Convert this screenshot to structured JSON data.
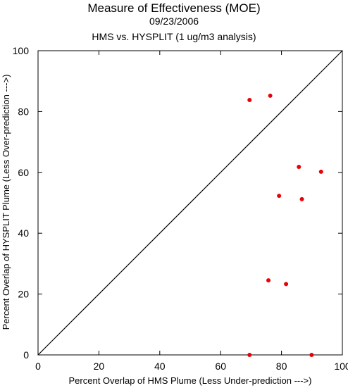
{
  "title": "Measure of Effectiveness (MOE)",
  "date": "09/23/2006",
  "subtitle": "HMS vs. HYSPLIT  (1 ug/m3 analysis)",
  "chart_data": {
    "type": "scatter",
    "title": "Measure of Effectiveness (MOE)",
    "subtitle": "HMS vs. HYSPLIT  (1 ug/m3 analysis)",
    "xlabel": "Percent Overlap of HMS Plume (Less Under-prediction --->)",
    "ylabel": "Percent Overlap of HYSPLIT Plume (Less Over-prediction --->)",
    "xlim": [
      0,
      100
    ],
    "ylim": [
      0,
      100
    ],
    "x_ticks": [
      0,
      20,
      40,
      60,
      80,
      100
    ],
    "y_ticks": [
      0,
      20,
      40,
      60,
      80,
      100
    ],
    "reference_line": "1:1 diagonal",
    "grid": false,
    "point_color": "#e8000b",
    "points": [
      {
        "x": 69.5,
        "y": 83.8
      },
      {
        "x": 76.3,
        "y": 85.2
      },
      {
        "x": 85.7,
        "y": 61.8
      },
      {
        "x": 93.0,
        "y": 60.2
      },
      {
        "x": 79.2,
        "y": 52.3
      },
      {
        "x": 86.7,
        "y": 51.2
      },
      {
        "x": 75.7,
        "y": 24.5
      },
      {
        "x": 81.5,
        "y": 23.3
      },
      {
        "x": 69.5,
        "y": 0.0
      },
      {
        "x": 89.9,
        "y": 0.0
      }
    ]
  }
}
